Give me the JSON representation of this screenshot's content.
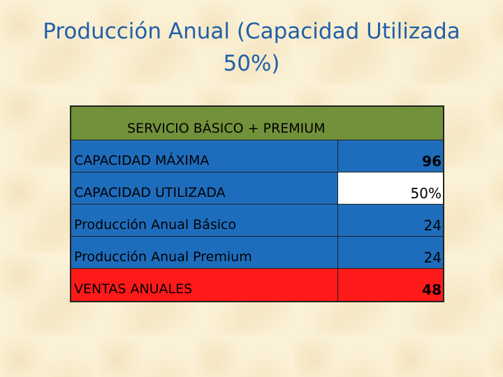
{
  "title": "Producción Anual (Capacidad Utilizada 50%)",
  "table": {
    "header": "SERVICIO BÁSICO + PREMIUM",
    "rows": [
      {
        "label": "CAPACIDAD MÁXIMA",
        "value": "96"
      },
      {
        "label": "CAPACIDAD UTILIZADA",
        "value": "50%"
      },
      {
        "label": "Producción Anual Básico",
        "value": "24"
      },
      {
        "label": "Producción Anual Premium",
        "value": "24"
      },
      {
        "label": "VENTAS ANUALES",
        "value": "48"
      }
    ]
  },
  "colors": {
    "title": "#2060a8",
    "header_bg": "#71913a",
    "row_bg": "#1e6dbd",
    "highlight_bg": "#ff1a1a",
    "value_bg": "#ffffff"
  }
}
